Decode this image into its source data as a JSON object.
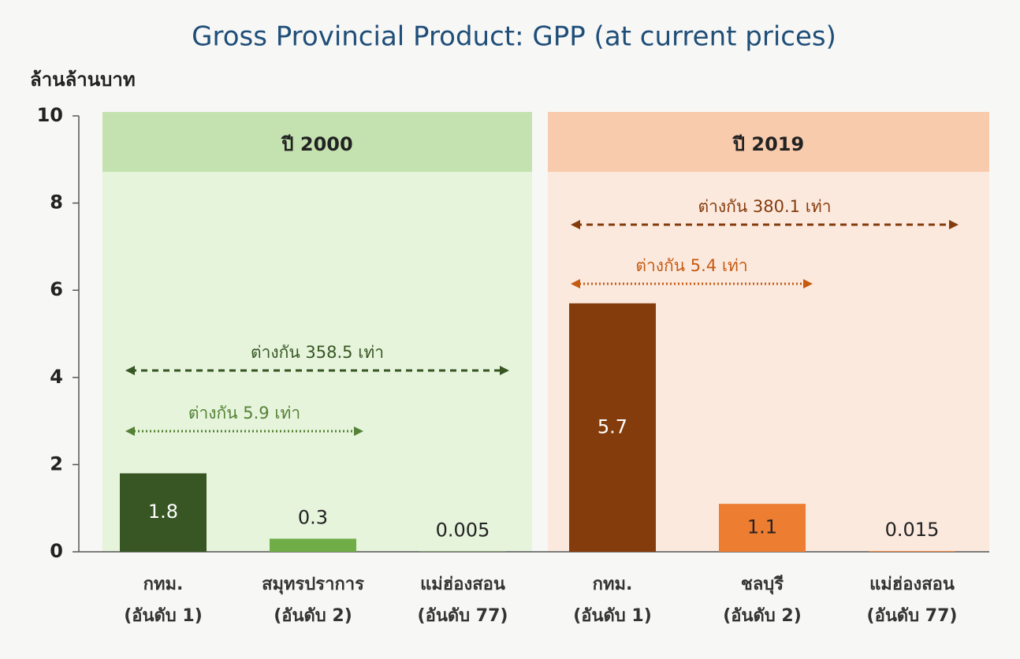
{
  "chart_data": {
    "type": "bar",
    "title": "Gross Provincial Product: GPP (at current prices)",
    "y_label": "ล้านล้านบาท",
    "ylim": [
      0,
      10
    ],
    "yticks": [
      0,
      2,
      4,
      6,
      8,
      10
    ],
    "groups": [
      {
        "name": "ปี 2000",
        "header_color": "#c4e2b0",
        "panel_color": "#e6f4dc",
        "categories": [
          [
            "กทม.",
            "(อันดับ 1)"
          ],
          [
            "สมุทรปราการ",
            "(อันดับ 2)"
          ],
          [
            "แม่ฮ่องสอน",
            "(อันดับ 77)"
          ]
        ],
        "values": [
          1.8,
          0.3,
          0.005
        ],
        "colors": [
          "#375623",
          "#70ad47",
          "#70ad47"
        ],
        "annotations": [
          {
            "text": "ต่างกัน 358.5 เท่า",
            "color": "#375623"
          },
          {
            "text": "ต่างกัน 5.9 เท่า",
            "color": "#548235"
          }
        ]
      },
      {
        "name": "ปี 2019",
        "header_color": "#f8cbad",
        "panel_color": "#fce9de",
        "categories": [
          [
            "กทม.",
            "(อันดับ 1)"
          ],
          [
            "ชลบุรี",
            "(อันดับ 2)"
          ],
          [
            "แม่ฮ่องสอน",
            "(อันดับ 77)"
          ]
        ],
        "values": [
          5.7,
          1.1,
          0.015
        ],
        "colors": [
          "#843c0c",
          "#ed7d31",
          "#ed7d31"
        ],
        "annotations": [
          {
            "text": "ต่างกัน 380.1 เท่า",
            "color": "#843c0c"
          },
          {
            "text": "ต่างกัน 5.4 เท่า",
            "color": "#c55a11"
          }
        ]
      }
    ]
  }
}
